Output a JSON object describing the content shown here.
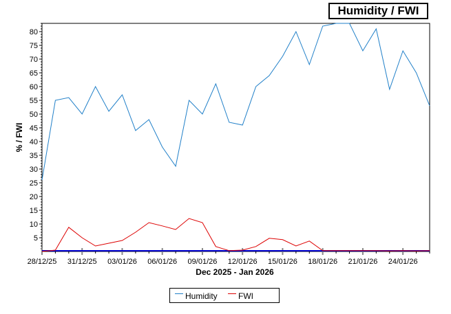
{
  "chart_data": {
    "type": "line",
    "title": "Humidity / FWI",
    "xlabel": "Dec 2025 - Jan 2026",
    "ylabel": "% / FWI",
    "ylim": [
      0,
      83
    ],
    "yticks": [
      5,
      10,
      15,
      20,
      25,
      30,
      35,
      40,
      45,
      50,
      55,
      60,
      65,
      70,
      75,
      80
    ],
    "x": [
      "28/12/25",
      "29/12/25",
      "30/12/25",
      "31/12/25",
      "01/01/26",
      "02/01/26",
      "03/01/26",
      "04/01/26",
      "05/01/26",
      "06/01/26",
      "07/01/26",
      "08/01/26",
      "09/01/26",
      "10/01/26",
      "11/01/26",
      "12/01/26",
      "13/01/26",
      "14/01/26",
      "15/01/26",
      "16/01/26",
      "17/01/26",
      "18/01/26",
      "19/01/26",
      "20/01/26",
      "21/01/26",
      "22/01/26",
      "23/01/26",
      "24/01/26",
      "25/01/26",
      "26/01/26"
    ],
    "xtick_labels": [
      "28/12/25",
      "31/12/25",
      "03/01/26",
      "06/01/26",
      "09/01/26",
      "12/01/26",
      "15/01/26",
      "18/01/26",
      "21/01/26",
      "24/01/26"
    ],
    "xtick_every": 3,
    "series": [
      {
        "name": "Humidity",
        "color": "#1f7fc8",
        "x": [
          0,
          1,
          2,
          3,
          4,
          5,
          6,
          7,
          8,
          9,
          10,
          11,
          12,
          13,
          14,
          15,
          16,
          17,
          18,
          19,
          20,
          21,
          22,
          23,
          24,
          25,
          26,
          27,
          28,
          29
        ],
        "values": [
          26,
          55,
          56,
          50,
          60,
          51,
          57,
          44,
          48,
          38,
          31,
          55,
          50,
          61,
          47,
          46,
          60,
          64,
          71,
          80,
          68,
          82,
          83,
          83,
          73,
          81,
          59,
          73,
          65,
          53
        ]
      },
      {
        "name": "FWI",
        "color": "#dd0000",
        "x": [
          0,
          1,
          2,
          3,
          4,
          5,
          6,
          7,
          8,
          9,
          10,
          11,
          12,
          13,
          14,
          15,
          16,
          17,
          18,
          19,
          20,
          21,
          22,
          23,
          24,
          25,
          26,
          27,
          28,
          29
        ],
        "values": [
          0,
          0.5,
          8.8,
          5,
          2,
          3,
          4,
          7,
          10.5,
          9.3,
          8,
          12,
          10.5,
          1.8,
          0.3,
          0.5,
          1.8,
          4.8,
          4.3,
          2,
          3.8,
          0.3,
          0.3,
          0.3,
          0.3,
          0.3,
          0.2,
          0.3,
          0.2,
          0.3
        ]
      }
    ],
    "baseline_color": "#0000cc",
    "grid": false,
    "legend_position": "bottom"
  }
}
